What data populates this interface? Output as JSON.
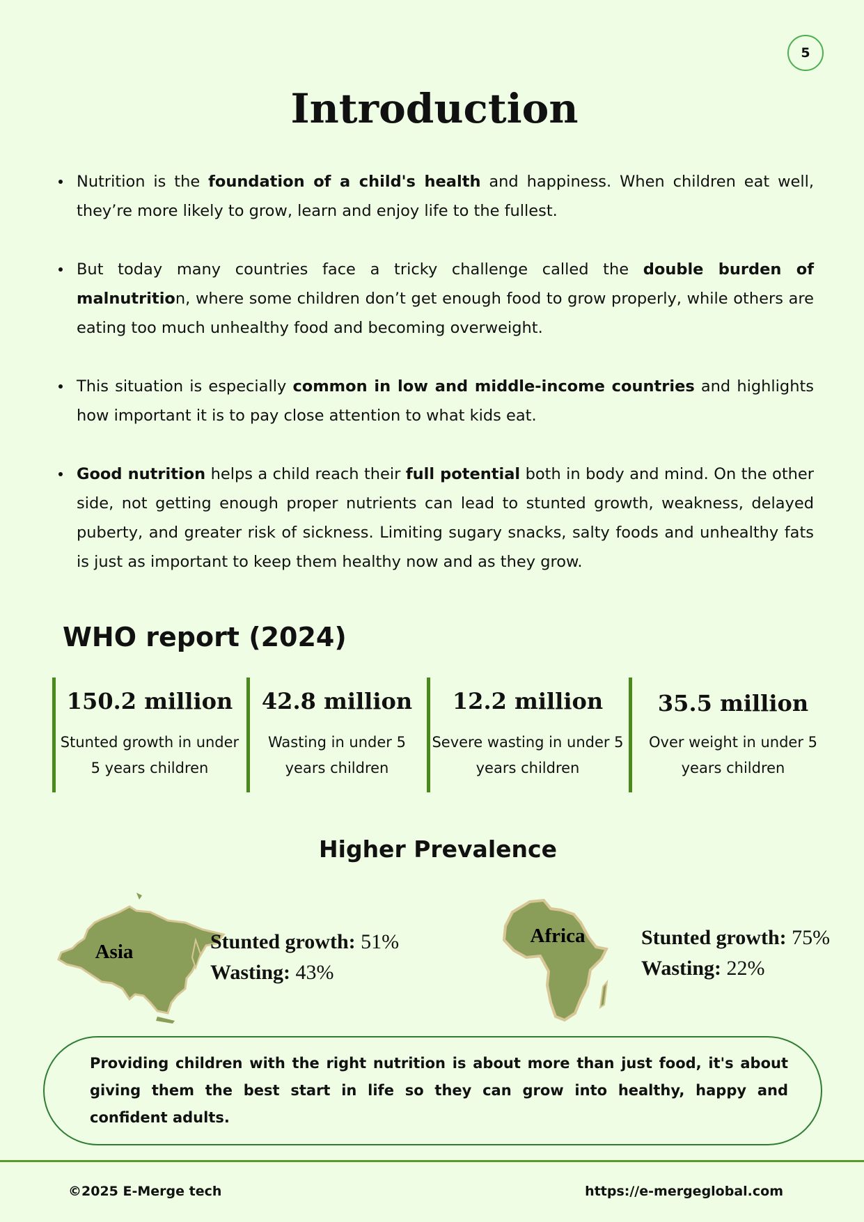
{
  "page_number": "5",
  "title": "Introduction",
  "bullets": [
    {
      "parts": [
        {
          "t": "Nutrition is the "
        },
        {
          "t": "foundation of a child's health",
          "b": true
        },
        {
          "t": " and happiness. When children eat well, they’re more likely to grow, learn and enjoy life to the fullest."
        }
      ]
    },
    {
      "parts": [
        {
          "t": "But today many countries face a tricky challenge called the "
        },
        {
          "t": "double burden of malnutritio",
          "b": true
        },
        {
          "t": "n, where some children don’t get enough food to grow properly, while others are eating too much unhealthy food and becoming overweight."
        }
      ]
    },
    {
      "parts": [
        {
          "t": "This situation is especially "
        },
        {
          "t": "common in low and middle-income countries",
          "b": true
        },
        {
          "t": " and highlights how important it is to pay close attention to what kids eat."
        }
      ]
    },
    {
      "parts": [
        {
          "t": "Good nutrition",
          "b": true
        },
        {
          "t": " helps a child reach their "
        },
        {
          "t": "full potential",
          "b": true
        },
        {
          "t": " both in body and mind. On the other side, not getting enough proper nutrients can lead to stunted growth, weakness, delayed puberty, and greater risk of sickness. Limiting sugary snacks, salty foods and unhealthy fats is just as important to keep them healthy now and as they grow."
        }
      ]
    }
  ],
  "who_heading": "WHO report (2024)",
  "stats": [
    {
      "value": "150.2 million",
      "desc": "Stunted growth in under 5 years children"
    },
    {
      "value": "42.8 million",
      "desc": "Wasting in under 5 years children"
    },
    {
      "value": "12.2 million",
      "desc": "Severe wasting in under 5 years children"
    },
    {
      "value": "35.5 million",
      "desc": "Over weight in under 5 years children"
    }
  ],
  "prevalence_heading": "Higher Prevalence",
  "regions": [
    {
      "name": "Asia",
      "stunted_label": "Stunted growth:",
      "stunted": "51%",
      "wasting_label": "Wasting:",
      "wasting": "43%"
    },
    {
      "name": "Africa",
      "stunted_label": "Stunted growth:",
      "stunted": "75%",
      "wasting_label": "Wasting:",
      "wasting": "22%"
    }
  ],
  "quote": "Providing children with the right nutrition is about more than just food, it's about giving them the best start in life so they can grow into healthy, happy and confident adults.",
  "footer": {
    "copyright": "©2025 E-Merge tech",
    "url": "https://e-mergeglobal.com"
  },
  "colors": {
    "background": "#effde4",
    "accent": "#4a8a1c",
    "map_fill": "#8a9e5a",
    "map_border": "#d8c796"
  }
}
